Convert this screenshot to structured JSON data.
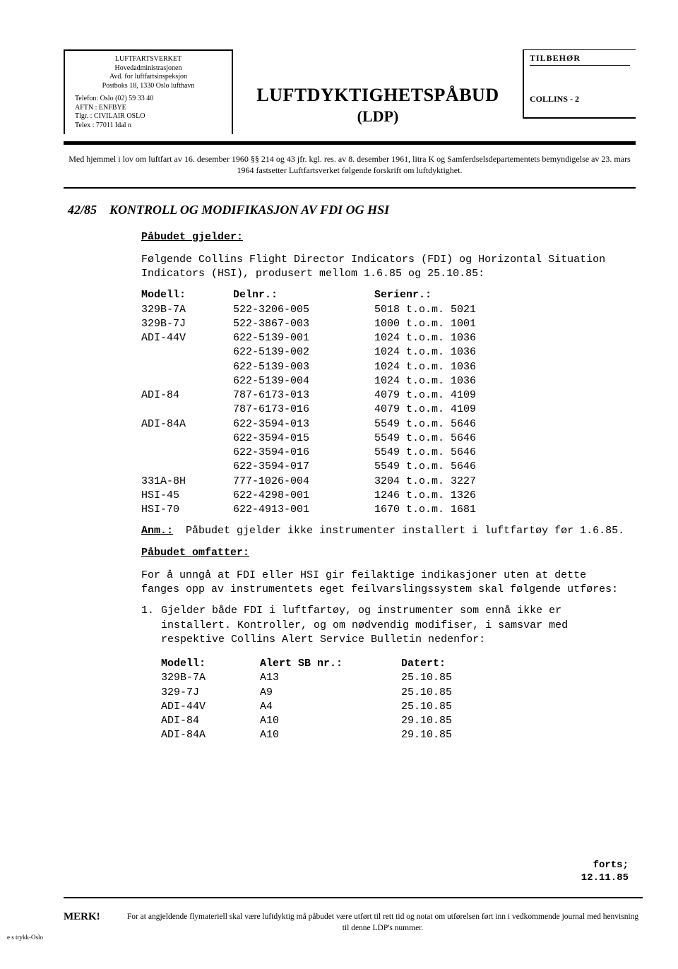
{
  "sender": {
    "l1": "LUFTFARTSVERKET",
    "l2": "Hovedadministrasjonen",
    "l3": "Avd. for luftfartsinspeksjon",
    "l4": "Postboks 18, 1330 Oslo lufthavn",
    "tel": "Telefon: Oslo (02) 59 33 40",
    "aftn": "AFTN   : ENFBYE",
    "tlgr": "Tlgr.  : CIVILAIR OSLO",
    "telex": "Telex  : 77011 Idal n"
  },
  "title": {
    "line1": "LUFTDYKTIGHETSPÅBUD",
    "line2": "(LDP)"
  },
  "right": {
    "top": "TILBEHØR",
    "label": "COLLINS - 2"
  },
  "preamble": "Med hjemmel i lov om luftfart av 16. desember 1960 §§ 214 og 43 jfr. kgl. res. av 8. desember 1961, litra K og Samferdselsdepartementets bemyndigelse av 23. mars 1964 fastsetter Luftfartsverket følgende forskrift om luftdyktighet.",
  "doc": {
    "ref": "42/85",
    "title": "KONTROLL OG MODIFIKASJON AV FDI OG HSI",
    "applies_head": "Påbudet gjelder:",
    "applies_text": "Følgende Collins Flight Director Indicators (FDI) og Horizontal Situation Indicators (HSI), produsert mellom 1.6.85 og 25.10.85:",
    "table_headers": {
      "model": "Modell:",
      "pn": "Delnr.:",
      "sn": "Serienr.:"
    },
    "parts": [
      {
        "model": "329B-7A",
        "pn": "522-3206-005",
        "sn": "5018 t.o.m. 5021"
      },
      {
        "model": "329B-7J",
        "pn": "522-3867-003",
        "sn": "1000 t.o.m. 1001"
      },
      {
        "model": "ADI-44V",
        "pn": "622-5139-001",
        "sn": "1024 t.o.m. 1036"
      },
      {
        "model": "",
        "pn": "622-5139-002",
        "sn": "1024 t.o.m. 1036"
      },
      {
        "model": "",
        "pn": "622-5139-003",
        "sn": "1024 t.o.m. 1036"
      },
      {
        "model": "",
        "pn": "622-5139-004",
        "sn": "1024 t.o.m. 1036"
      },
      {
        "model": "ADI-84",
        "pn": "787-6173-013",
        "sn": "4079 t.o.m. 4109"
      },
      {
        "model": "",
        "pn": "787-6173-016",
        "sn": "4079 t.o.m. 4109"
      },
      {
        "model": "ADI-84A",
        "pn": "622-3594-013",
        "sn": "5549 t.o.m. 5646"
      },
      {
        "model": "",
        "pn": "622-3594-015",
        "sn": "5549 t.o.m. 5646"
      },
      {
        "model": "",
        "pn": "622-3594-016",
        "sn": "5549 t.o.m. 5646"
      },
      {
        "model": "",
        "pn": "622-3594-017",
        "sn": "5549 t.o.m. 5646"
      },
      {
        "model": "331A-8H",
        "pn": "777-1026-004",
        "sn": "3204 t.o.m. 3227"
      },
      {
        "model": "HSI-45",
        "pn": "622-4298-001",
        "sn": "1246 t.o.m. 1326"
      },
      {
        "model": "HSI-70",
        "pn": "622-4913-001",
        "sn": "1670 t.o.m. 1681"
      }
    ],
    "anm_label": "Anm.:",
    "anm_text": "Påbudet gjelder ikke instrumenter installert i luftfartøy før 1.6.85.",
    "covers_head": "Påbudet omfatter:",
    "covers_text": "For å unngå at FDI eller HSI gir feilaktige indikasjoner uten at dette fanges opp av instrumentets eget feilvarslingssystem skal følgende utføres:",
    "item1": "Gjelder både FDI i luftfartøy, og instrumenter som ennå ikke er installert. Kontroller, og om nødvendig modifiser, i samsvar med respektive Collins Alert Service Bulletin nedenfor:",
    "sb_headers": {
      "model": "Modell:",
      "sb": "Alert SB nr.:",
      "date": "Datert:"
    },
    "sbs": [
      {
        "model": "329B-7A",
        "sb": "A13",
        "date": "25.10.85"
      },
      {
        "model": "329-7J",
        "sb": "A9",
        "date": "25.10.85"
      },
      {
        "model": "ADI-44V",
        "sb": "A4",
        "date": "25.10.85"
      },
      {
        "model": "ADI-84",
        "sb": "A10",
        "date": "29.10.85"
      },
      {
        "model": "ADI-84A",
        "sb": "A10",
        "date": "29.10.85"
      }
    ]
  },
  "forts": {
    "l1": "forts;",
    "l2": "12.11.85"
  },
  "merk": {
    "label": "MERK!",
    "text": "For at angjeldende flymateriell skal være luftdyktig må påbudet være utført til rett tid og notat om utførelsen ført inn i vedkommende journal med henvisning til denne LDP's nummer."
  },
  "printer": "e s trykk-Oslo"
}
